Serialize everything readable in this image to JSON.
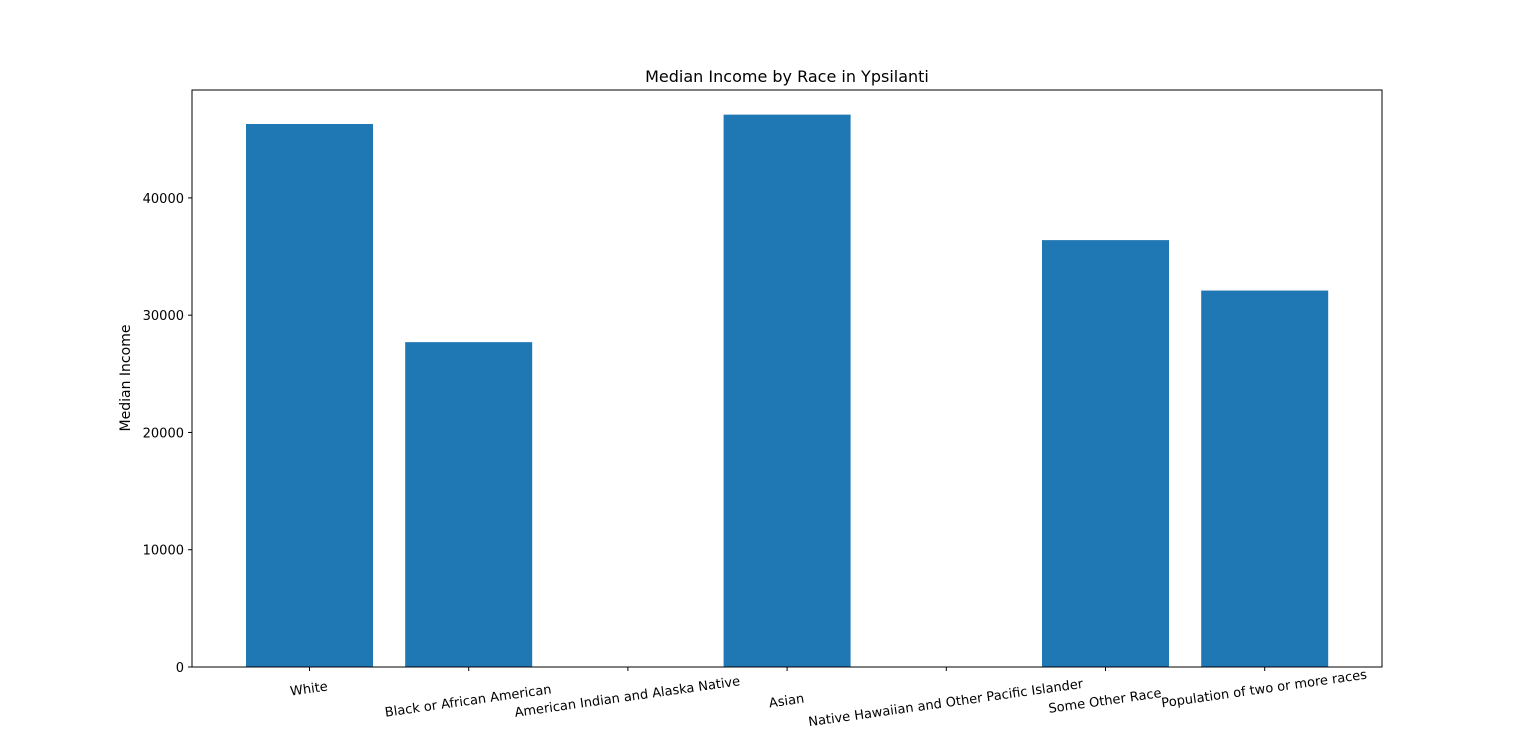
{
  "chart_data": {
    "type": "bar",
    "title": "Median Income by Race in Ypsilanti",
    "xlabel": "",
    "ylabel": "Median Income",
    "categories": [
      "White",
      "Black or African American",
      "American Indian and Alaska Native",
      "Asian",
      "Native Hawaiian and Other Pacific Islander",
      "Some Other Race",
      "Population of two or more races"
    ],
    "values": [
      46300,
      27700,
      0,
      47100,
      0,
      36400,
      32100
    ],
    "ylim": [
      0,
      49200
    ],
    "yticks": [
      0,
      10000,
      20000,
      30000,
      40000
    ],
    "ytick_labels": [
      "0",
      "10000",
      "20000",
      "30000",
      "40000"
    ],
    "bar_color": "#1f77b4",
    "grid": false,
    "legend": false
  }
}
